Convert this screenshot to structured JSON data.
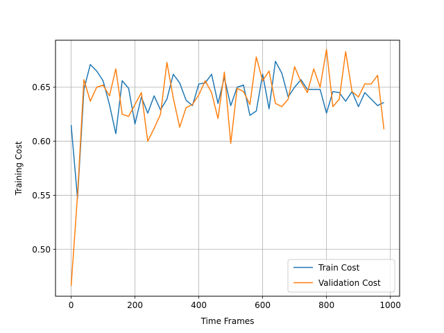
{
  "chart_data": {
    "type": "line",
    "title": "",
    "xlabel": "Time Frames",
    "ylabel": "Training Cost",
    "xlim": [
      -49,
      1029
    ],
    "ylim": [
      0.4565,
      0.6935
    ],
    "xticks": [
      0,
      200,
      400,
      600,
      800,
      1000
    ],
    "xtick_labels": [
      "0",
      "200",
      "400",
      "600",
      "800",
      "1000"
    ],
    "yticks": [
      0.5,
      0.55,
      0.6,
      0.65
    ],
    "ytick_labels": [
      "0.50",
      "0.55",
      "0.60",
      "0.65"
    ],
    "grid": true,
    "legend_position": "lower-right",
    "x": [
      0,
      20,
      40,
      60,
      80,
      100,
      120,
      140,
      160,
      180,
      200,
      220,
      240,
      260,
      280,
      300,
      320,
      340,
      360,
      380,
      400,
      420,
      440,
      460,
      480,
      500,
      520,
      540,
      560,
      580,
      600,
      620,
      640,
      660,
      680,
      700,
      720,
      740,
      760,
      780,
      800,
      820,
      840,
      860,
      880,
      900,
      920,
      940,
      960,
      980
    ],
    "series": [
      {
        "name": "Train Cost",
        "color": "#1f77b4",
        "values": [
          0.615,
          0.547,
          0.648,
          0.671,
          0.665,
          0.656,
          0.634,
          0.607,
          0.656,
          0.649,
          0.616,
          0.641,
          0.626,
          0.642,
          0.629,
          0.639,
          0.662,
          0.654,
          0.638,
          0.633,
          0.653,
          0.654,
          0.662,
          0.635,
          0.659,
          0.633,
          0.65,
          0.652,
          0.624,
          0.628,
          0.662,
          0.63,
          0.674,
          0.663,
          0.641,
          0.65,
          0.657,
          0.648,
          0.648,
          0.648,
          0.626,
          0.646,
          0.645,
          0.637,
          0.646,
          0.632,
          0.645,
          0.639,
          0.633,
          0.636
        ]
      },
      {
        "name": "Validation Cost",
        "color": "#ff7f0e",
        "values": [
          0.466,
          0.55,
          0.657,
          0.637,
          0.65,
          0.652,
          0.642,
          0.667,
          0.625,
          0.623,
          0.634,
          0.645,
          0.6,
          0.612,
          0.625,
          0.673,
          0.64,
          0.613,
          0.631,
          0.634,
          0.643,
          0.656,
          0.645,
          0.621,
          0.664,
          0.598,
          0.649,
          0.646,
          0.634,
          0.678,
          0.656,
          0.665,
          0.635,
          0.632,
          0.639,
          0.669,
          0.655,
          0.645,
          0.667,
          0.65,
          0.685,
          0.632,
          0.639,
          0.683,
          0.646,
          0.641,
          0.653,
          0.653,
          0.661,
          0.611
        ]
      }
    ]
  }
}
